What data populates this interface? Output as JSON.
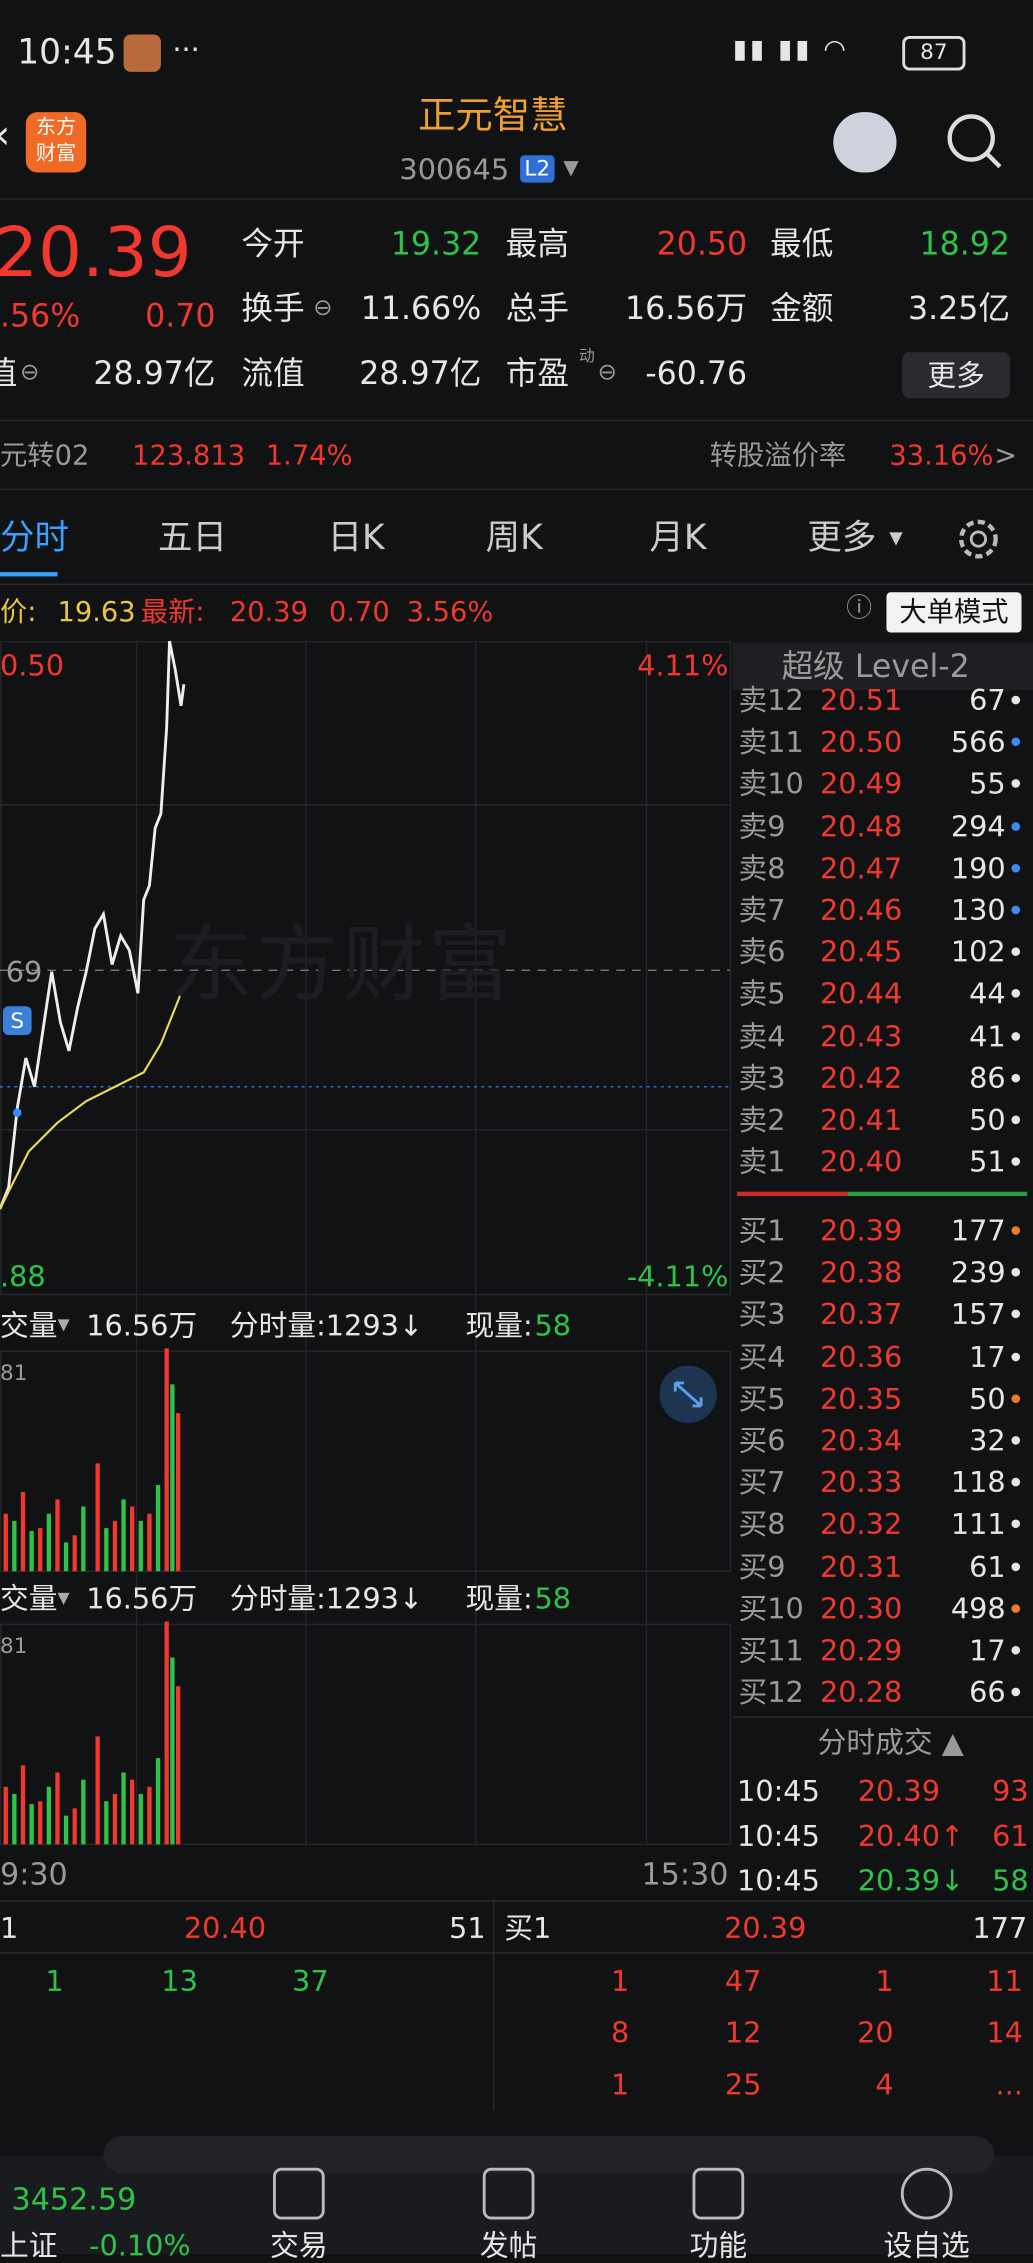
{
  "status": {
    "time": "10:45",
    "dots": "···",
    "battery": "87"
  },
  "header": {
    "logo": [
      "东方",
      "财富"
    ],
    "name": "正元智慧",
    "code": "300645",
    "level": "L2"
  },
  "quote": {
    "price": "20.39",
    "change_pct": ".56%",
    "change": "0.70",
    "fields": [
      {
        "label": "今开",
        "value": "19.32",
        "tone": "down"
      },
      {
        "label": "最高",
        "value": "20.50",
        "tone": "up"
      },
      {
        "label": "最低",
        "value": "18.92",
        "tone": "down"
      },
      {
        "label": "换手",
        "value": "11.66%",
        "tone": "flat"
      },
      {
        "label": "总手",
        "value": "16.56万",
        "tone": "flat"
      },
      {
        "label": "金额",
        "value": "3.25亿",
        "tone": "flat"
      }
    ],
    "row3": {
      "label0": "值",
      "value0": "28.97亿",
      "label1": "流值",
      "value1": "28.97亿",
      "label2": "市盈",
      "sup": "动",
      "value2": "-60.76"
    },
    "more": "更多"
  },
  "bond": {
    "name": "元转02",
    "price": "123.813",
    "pct": "1.74%",
    "premium_label": "转股溢价率",
    "premium": "33.16%",
    "arrow": ">"
  },
  "tabs": [
    "分时",
    "五日",
    "日K",
    "周K",
    "月K",
    "更多"
  ],
  "info": {
    "avg_label": "价:",
    "avg": "19.63",
    "last_label": "最新:",
    "last": "20.39",
    "change": "0.70",
    "pct": "3.56%",
    "mode": "大单模式"
  },
  "chart": {
    "high": "0.50",
    "high_pct": "4.11%",
    "mid": "69",
    "signal": "S",
    "low": ".88",
    "low_pct": "-4.11%",
    "watermark": "东方财富",
    "start": "9:30",
    "end": "15:30"
  },
  "volume_panels": [
    {
      "label": "交量",
      "total": "16.56万",
      "minute": "分时量:1293↓",
      "now_label": "现量:",
      "now": "58",
      "max": "81"
    },
    {
      "label": "交量",
      "total": "16.56万",
      "minute": "分时量:1293↓",
      "now_label": "现量:",
      "now": "58",
      "max": "81"
    }
  ],
  "order_book": {
    "title": "超级 Level-2",
    "sells": [
      [
        "卖12",
        "20.51",
        "67",
        "#e6e6e6"
      ],
      [
        "卖11",
        "20.50",
        "566",
        "#3b8cf0"
      ],
      [
        "卖10",
        "20.49",
        "55",
        "#e6e6e6"
      ],
      [
        "卖9",
        "20.48",
        "294",
        "#3b8cf0"
      ],
      [
        "卖8",
        "20.47",
        "190",
        "#3b8cf0"
      ],
      [
        "卖7",
        "20.46",
        "130",
        "#3b8cf0"
      ],
      [
        "卖6",
        "20.45",
        "102",
        "#e6e6e6"
      ],
      [
        "卖5",
        "20.44",
        "44",
        "#e6e6e6"
      ],
      [
        "卖4",
        "20.43",
        "41",
        "#e6e6e6"
      ],
      [
        "卖3",
        "20.42",
        "86",
        "#e6e6e6"
      ],
      [
        "卖2",
        "20.41",
        "50",
        "#e6e6e6"
      ],
      [
        "卖1",
        "20.40",
        "51",
        "#e6e6e6"
      ]
    ],
    "buys": [
      [
        "买1",
        "20.39",
        "177",
        "#f07a2a"
      ],
      [
        "买2",
        "20.38",
        "239",
        "#e6e6e6"
      ],
      [
        "买3",
        "20.37",
        "157",
        "#e6e6e6"
      ],
      [
        "买4",
        "20.36",
        "17",
        "#e6e6e6"
      ],
      [
        "买5",
        "20.35",
        "50",
        "#f07a2a"
      ],
      [
        "买6",
        "20.34",
        "32",
        "#e6e6e6"
      ],
      [
        "买7",
        "20.33",
        "118",
        "#e6e6e6"
      ],
      [
        "买8",
        "20.32",
        "111",
        "#e6e6e6"
      ],
      [
        "买9",
        "20.31",
        "61",
        "#e6e6e6"
      ],
      [
        "买10",
        "20.30",
        "498",
        "#f07a2a"
      ],
      [
        "买11",
        "20.29",
        "17",
        "#e6e6e6"
      ],
      [
        "买12",
        "20.28",
        "66",
        "#e6e6e6"
      ]
    ]
  },
  "trades": {
    "title": "分时成交 ▲",
    "rows": [
      [
        "10:45",
        "20.39",
        "93",
        "up"
      ],
      [
        "10:45",
        "20.40↑",
        "61",
        "up"
      ],
      [
        "10:45",
        "20.39↓",
        "58",
        "down"
      ]
    ]
  },
  "queue": {
    "left": {
      "label": "1",
      "price": "20.40",
      "qty": "51",
      "rows": [
        [
          "1",
          "13",
          "37"
        ]
      ]
    },
    "right": {
      "label": "买1",
      "price": "20.39",
      "qty": "177",
      "rows": [
        [
          "1",
          "47",
          "1",
          "11"
        ],
        [
          "8",
          "12",
          "20",
          "14"
        ],
        [
          "1",
          "25",
          "4",
          "..."
        ]
      ]
    }
  },
  "nav": {
    "index_value": "3452.59",
    "index_name": "上证",
    "index_pct": "-0.10%",
    "items": [
      "交易",
      "发帖",
      "功能",
      "设自选"
    ]
  }
}
